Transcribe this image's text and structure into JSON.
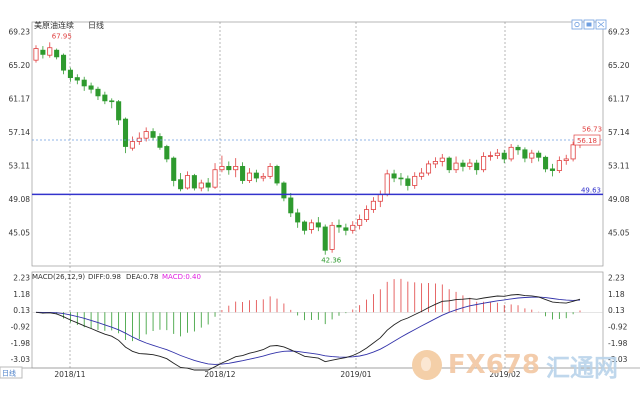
{
  "chart_data": [
    {
      "type": "candlestick",
      "title": "美原油连续",
      "period": "日线",
      "y_ticks": [
        69.23,
        65.2,
        61.17,
        57.14,
        53.11,
        49.08,
        45.05
      ],
      "ylim": [
        41.0,
        70.4
      ],
      "x_labels": [
        "2018/11",
        "2018/12",
        "2019/01",
        "2019/02"
      ],
      "annotations": {
        "high": "67.95",
        "low": "42.36",
        "last_high": "56.73",
        "current": "56.18",
        "support": "49.63"
      },
      "support_level": 49.63,
      "current_level": 56.18,
      "candles": [
        [
          65.8,
          67.2,
          65.5,
          67.6
        ],
        [
          67.0,
          66.5,
          66.0,
          67.5
        ],
        [
          66.4,
          67.3,
          66.1,
          67.95
        ],
        [
          67.0,
          66.2,
          65.9,
          67.2
        ],
        [
          66.4,
          64.6,
          64.1,
          66.6
        ],
        [
          64.6,
          63.7,
          63.2,
          64.9
        ],
        [
          63.7,
          63.4,
          62.9,
          64.1
        ],
        [
          63.4,
          62.7,
          62.1,
          63.8
        ],
        [
          62.7,
          62.3,
          61.8,
          63.1
        ],
        [
          62.3,
          61.5,
          61.0,
          62.6
        ],
        [
          61.6,
          60.9,
          60.5,
          62.0
        ],
        [
          60.9,
          60.8,
          60.0,
          61.2
        ],
        [
          60.8,
          58.6,
          58.0,
          61.0
        ],
        [
          58.7,
          55.4,
          54.6,
          58.9
        ],
        [
          55.2,
          56.0,
          54.9,
          56.6
        ],
        [
          56.0,
          56.4,
          55.6,
          57.1
        ],
        [
          56.4,
          57.2,
          56.0,
          57.7
        ],
        [
          57.2,
          56.5,
          56.1,
          57.6
        ],
        [
          56.6,
          55.3,
          55.0,
          57.0
        ],
        [
          55.4,
          53.9,
          53.5,
          55.6
        ],
        [
          54.0,
          51.3,
          50.6,
          54.2
        ],
        [
          51.4,
          50.3,
          50.0,
          52.2
        ],
        [
          50.4,
          51.9,
          50.2,
          52.4
        ],
        [
          51.9,
          50.4,
          50.1,
          52.1
        ],
        [
          50.4,
          51.0,
          50.0,
          51.4
        ],
        [
          51.0,
          50.5,
          50.0,
          51.6
        ],
        [
          50.5,
          52.6,
          50.3,
          53.4
        ],
        [
          52.6,
          53.0,
          52.3,
          54.3
        ],
        [
          53.0,
          52.6,
          52.0,
          53.6
        ],
        [
          52.6,
          53.0,
          51.7,
          54.0
        ],
        [
          53.0,
          51.3,
          50.9,
          53.5
        ],
        [
          51.3,
          52.2,
          51.0,
          52.8
        ],
        [
          52.2,
          51.6,
          51.1,
          52.6
        ],
        [
          51.6,
          51.8,
          51.2,
          52.2
        ],
        [
          51.8,
          53.0,
          51.5,
          53.4
        ],
        [
          53.0,
          51.0,
          50.7,
          53.2
        ],
        [
          51.0,
          49.2,
          48.8,
          51.2
        ],
        [
          49.2,
          47.4,
          46.9,
          49.8
        ],
        [
          47.4,
          46.3,
          45.6,
          47.9
        ],
        [
          46.3,
          45.3,
          44.8,
          46.5
        ],
        [
          45.4,
          46.2,
          44.9,
          46.6
        ],
        [
          46.2,
          45.7,
          45.2,
          46.9
        ],
        [
          45.7,
          42.9,
          42.36,
          46.0
        ],
        [
          43.0,
          45.9,
          42.6,
          46.3
        ],
        [
          45.9,
          45.7,
          45.0,
          46.6
        ],
        [
          45.6,
          45.3,
          44.7,
          46.1
        ],
        [
          45.3,
          45.9,
          44.9,
          46.4
        ],
        [
          45.9,
          46.6,
          45.4,
          47.2
        ],
        [
          46.6,
          47.8,
          46.3,
          48.3
        ],
        [
          47.8,
          48.8,
          47.4,
          49.3
        ],
        [
          48.8,
          49.6,
          48.1,
          50.1
        ],
        [
          49.6,
          52.1,
          49.4,
          52.6
        ],
        [
          52.1,
          51.6,
          51.1,
          52.6
        ],
        [
          51.6,
          51.5,
          50.7,
          52.2
        ],
        [
          51.5,
          50.7,
          50.1,
          51.9
        ],
        [
          50.7,
          51.8,
          50.3,
          52.3
        ],
        [
          51.8,
          52.2,
          51.4,
          52.8
        ],
        [
          52.2,
          53.3,
          51.9,
          53.7
        ],
        [
          53.3,
          53.6,
          52.8,
          54.1
        ],
        [
          53.6,
          54.0,
          53.0,
          54.5
        ],
        [
          54.0,
          52.6,
          52.2,
          54.2
        ],
        [
          52.6,
          53.4,
          52.2,
          54.2
        ],
        [
          53.4,
          53.0,
          52.4,
          53.8
        ],
        [
          53.0,
          53.4,
          52.6,
          53.9
        ],
        [
          53.4,
          52.6,
          52.0,
          53.8
        ],
        [
          52.6,
          54.2,
          52.3,
          54.7
        ],
        [
          54.2,
          54.3,
          53.7,
          54.8
        ],
        [
          54.3,
          54.6,
          53.9,
          55.1
        ],
        [
          54.6,
          53.9,
          53.4,
          55.0
        ],
        [
          53.9,
          55.3,
          53.6,
          55.7
        ],
        [
          55.3,
          55.0,
          54.4,
          55.6
        ],
        [
          55.0,
          54.0,
          53.5,
          55.3
        ],
        [
          54.0,
          54.6,
          53.4,
          55.0
        ],
        [
          54.6,
          54.1,
          53.6,
          54.9
        ],
        [
          54.1,
          52.7,
          52.3,
          54.3
        ],
        [
          52.7,
          52.5,
          51.8,
          53.3
        ],
        [
          52.5,
          53.7,
          52.2,
          54.2
        ],
        [
          53.7,
          53.9,
          53.2,
          54.4
        ],
        [
          53.9,
          55.6,
          53.6,
          56.0
        ],
        [
          55.6,
          56.3,
          55.2,
          56.73
        ]
      ]
    },
    {
      "type": "macd",
      "label": "MACD(26,12,9)",
      "diff_text": "DIFF:0.98",
      "dea_text": "DEA:0.78",
      "macd_text": "MACD:0.40",
      "y_ticks": [
        2.23,
        1.18,
        0.13,
        -0.92,
        -1.98,
        -3.03
      ],
      "ylim": [
        -3.6,
        2.6
      ]
    }
  ],
  "colors": {
    "up": "#e04040",
    "down": "#2e9a2e",
    "dea": "#3333aa",
    "diff": "#222222",
    "macd": "#e020e0",
    "support": "#3333cc",
    "current": "#6f9fe0"
  },
  "period_button": "日线",
  "ui": {
    "icons": [
      "zoom-icon",
      "settings-icon",
      "fullscreen-icon"
    ]
  },
  "watermark": {
    "brand": "FX678",
    "cn": "汇通网"
  }
}
